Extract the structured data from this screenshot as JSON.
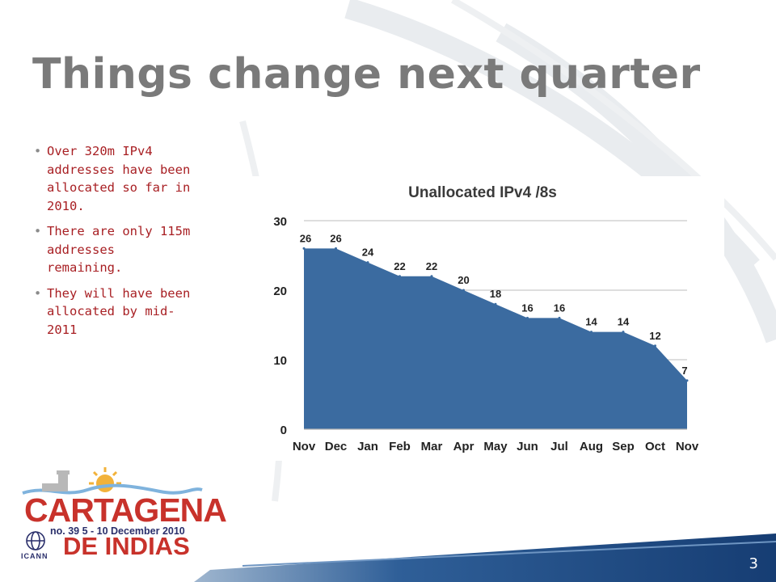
{
  "slide": {
    "title": "Things change next quarter",
    "bullets": [
      "Over 320m IPv4 addresses have been allocated so far in 2010.",
      "There are only 115m addresses remaining.",
      "They will have been allocated by mid-2011"
    ],
    "page_number": "3"
  },
  "logo": {
    "line1": "CARTAGENA",
    "subtitle": "no. 39   5 - 10 December 2010",
    "line2": "DE INDIAS",
    "org": "ICANN"
  },
  "colors": {
    "title": "#7a7a7a",
    "bullet_text": "#a81f23",
    "area_fill": "#3b6ba0",
    "logo_red": "#c8322b",
    "logo_navy": "#2a2f6b",
    "footer_blue": "#1f4f8f"
  },
  "chart_data": {
    "type": "area",
    "title": "Unallocated IPv4 /8s",
    "xlabel": "",
    "ylabel": "",
    "categories": [
      "Nov",
      "Dec",
      "Jan",
      "Feb",
      "Mar",
      "Apr",
      "May",
      "Jun",
      "Jul",
      "Aug",
      "Sep",
      "Oct",
      "Nov"
    ],
    "values": [
      26,
      26,
      24,
      22,
      22,
      20,
      18,
      16,
      16,
      14,
      14,
      12,
      7
    ],
    "ylim": [
      0,
      30
    ],
    "yticks": [
      0,
      10,
      20,
      30
    ],
    "grid": true,
    "legend": "none"
  }
}
